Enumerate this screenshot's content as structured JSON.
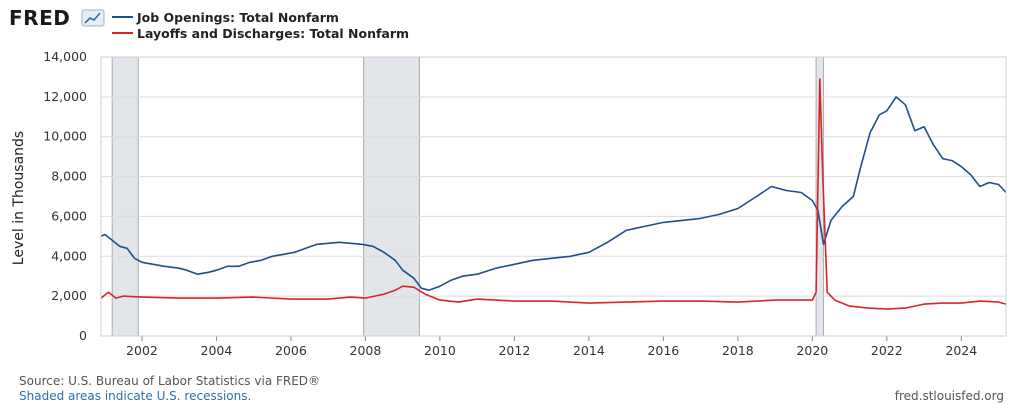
{
  "header": {
    "logo": "FRED",
    "logo_icon": "chart-line-icon"
  },
  "legend": [
    {
      "label": "Job Openings: Total Nonfarm",
      "color": "#1f4e8c"
    },
    {
      "label": "Layoffs and Discharges: Total Nonfarm",
      "color": "#d62728"
    }
  ],
  "footer": {
    "source": "Source: U.S. Bureau of Labor Statistics via FRED®",
    "recession_note": "Shaded areas indicate U.S. recessions.",
    "site": "fred.stlouisfed.org"
  },
  "chart_data": {
    "type": "line",
    "ylabel": "Level in Thousands",
    "ylim": [
      0,
      14000
    ],
    "yticks": [
      {
        "value": 0,
        "label": "0"
      },
      {
        "value": 2000,
        "label": "2,000"
      },
      {
        "value": 4000,
        "label": "4,000"
      },
      {
        "value": 6000,
        "label": "6,000"
      },
      {
        "value": 8000,
        "label": "8,000"
      },
      {
        "value": 10000,
        "label": "10,000"
      },
      {
        "value": 12000,
        "label": "12,000"
      },
      {
        "value": 14000,
        "label": "14,000"
      }
    ],
    "xlim": [
      2000.9,
      2025.2
    ],
    "xticks": [
      "2002",
      "2004",
      "2006",
      "2008",
      "2010",
      "2012",
      "2014",
      "2016",
      "2018",
      "2020",
      "2022",
      "2024"
    ],
    "grid": true,
    "legend_position": "top-left",
    "recessions": [
      [
        2001.2,
        2001.9
      ],
      [
        2007.95,
        2009.45
      ],
      [
        2020.1,
        2020.3
      ]
    ],
    "series": [
      {
        "name": "Job Openings: Total Nonfarm",
        "color": "#1f4e8c",
        "points": [
          [
            2000.9,
            5000
          ],
          [
            2001.0,
            5100
          ],
          [
            2001.2,
            4800
          ],
          [
            2001.4,
            4500
          ],
          [
            2001.6,
            4400
          ],
          [
            2001.8,
            3900
          ],
          [
            2002.0,
            3700
          ],
          [
            2002.3,
            3600
          ],
          [
            2002.6,
            3500
          ],
          [
            2003.0,
            3400
          ],
          [
            2003.2,
            3300
          ],
          [
            2003.5,
            3100
          ],
          [
            2003.8,
            3200
          ],
          [
            2004.0,
            3300
          ],
          [
            2004.3,
            3500
          ],
          [
            2004.6,
            3500
          ],
          [
            2004.9,
            3700
          ],
          [
            2005.2,
            3800
          ],
          [
            2005.5,
            4000
          ],
          [
            2005.8,
            4100
          ],
          [
            2006.1,
            4200
          ],
          [
            2006.4,
            4400
          ],
          [
            2006.7,
            4600
          ],
          [
            2007.0,
            4650
          ],
          [
            2007.3,
            4700
          ],
          [
            2007.6,
            4650
          ],
          [
            2007.9,
            4600
          ],
          [
            2008.2,
            4500
          ],
          [
            2008.5,
            4200
          ],
          [
            2008.8,
            3800
          ],
          [
            2009.0,
            3300
          ],
          [
            2009.3,
            2900
          ],
          [
            2009.5,
            2400
          ],
          [
            2009.7,
            2300
          ],
          [
            2010.0,
            2500
          ],
          [
            2010.3,
            2800
          ],
          [
            2010.6,
            3000
          ],
          [
            2011.0,
            3100
          ],
          [
            2011.5,
            3400
          ],
          [
            2012.0,
            3600
          ],
          [
            2012.5,
            3800
          ],
          [
            2013.0,
            3900
          ],
          [
            2013.5,
            4000
          ],
          [
            2014.0,
            4200
          ],
          [
            2014.5,
            4700
          ],
          [
            2015.0,
            5300
          ],
          [
            2015.5,
            5500
          ],
          [
            2016.0,
            5700
          ],
          [
            2016.5,
            5800
          ],
          [
            2017.0,
            5900
          ],
          [
            2017.5,
            6100
          ],
          [
            2018.0,
            6400
          ],
          [
            2018.5,
            7000
          ],
          [
            2018.9,
            7500
          ],
          [
            2019.3,
            7300
          ],
          [
            2019.7,
            7200
          ],
          [
            2020.0,
            6800
          ],
          [
            2020.15,
            6300
          ],
          [
            2020.3,
            4600
          ],
          [
            2020.5,
            5800
          ],
          [
            2020.8,
            6500
          ],
          [
            2021.1,
            7000
          ],
          [
            2021.3,
            8500
          ],
          [
            2021.55,
            10200
          ],
          [
            2021.8,
            11100
          ],
          [
            2022.0,
            11300
          ],
          [
            2022.25,
            12000
          ],
          [
            2022.5,
            11600
          ],
          [
            2022.75,
            10300
          ],
          [
            2023.0,
            10500
          ],
          [
            2023.25,
            9600
          ],
          [
            2023.5,
            8900
          ],
          [
            2023.75,
            8800
          ],
          [
            2024.0,
            8500
          ],
          [
            2024.25,
            8100
          ],
          [
            2024.5,
            7500
          ],
          [
            2024.75,
            7700
          ],
          [
            2025.0,
            7600
          ],
          [
            2025.2,
            7200
          ]
        ]
      },
      {
        "name": "Layoffs and Discharges: Total Nonfarm",
        "color": "#d62728",
        "points": [
          [
            2000.9,
            1900
          ],
          [
            2001.1,
            2200
          ],
          [
            2001.3,
            1900
          ],
          [
            2001.5,
            2000
          ],
          [
            2002.0,
            1950
          ],
          [
            2003.0,
            1900
          ],
          [
            2004.0,
            1900
          ],
          [
            2005.0,
            1950
          ],
          [
            2006.0,
            1850
          ],
          [
            2007.0,
            1850
          ],
          [
            2007.6,
            1950
          ],
          [
            2008.0,
            1900
          ],
          [
            2008.5,
            2100
          ],
          [
            2008.8,
            2300
          ],
          [
            2009.0,
            2500
          ],
          [
            2009.3,
            2450
          ],
          [
            2009.6,
            2100
          ],
          [
            2010.0,
            1800
          ],
          [
            2010.5,
            1700
          ],
          [
            2011.0,
            1850
          ],
          [
            2012.0,
            1750
          ],
          [
            2013.0,
            1750
          ],
          [
            2014.0,
            1650
          ],
          [
            2015.0,
            1700
          ],
          [
            2016.0,
            1750
          ],
          [
            2017.0,
            1750
          ],
          [
            2018.0,
            1700
          ],
          [
            2019.0,
            1800
          ],
          [
            2020.0,
            1800
          ],
          [
            2020.1,
            2200
          ],
          [
            2020.2,
            12900
          ],
          [
            2020.28,
            8000
          ],
          [
            2020.4,
            2200
          ],
          [
            2020.6,
            1800
          ],
          [
            2021.0,
            1500
          ],
          [
            2021.5,
            1400
          ],
          [
            2022.0,
            1350
          ],
          [
            2022.5,
            1400
          ],
          [
            2023.0,
            1600
          ],
          [
            2023.5,
            1650
          ],
          [
            2024.0,
            1650
          ],
          [
            2024.5,
            1750
          ],
          [
            2025.0,
            1700
          ],
          [
            2025.2,
            1600
          ]
        ]
      }
    ]
  }
}
